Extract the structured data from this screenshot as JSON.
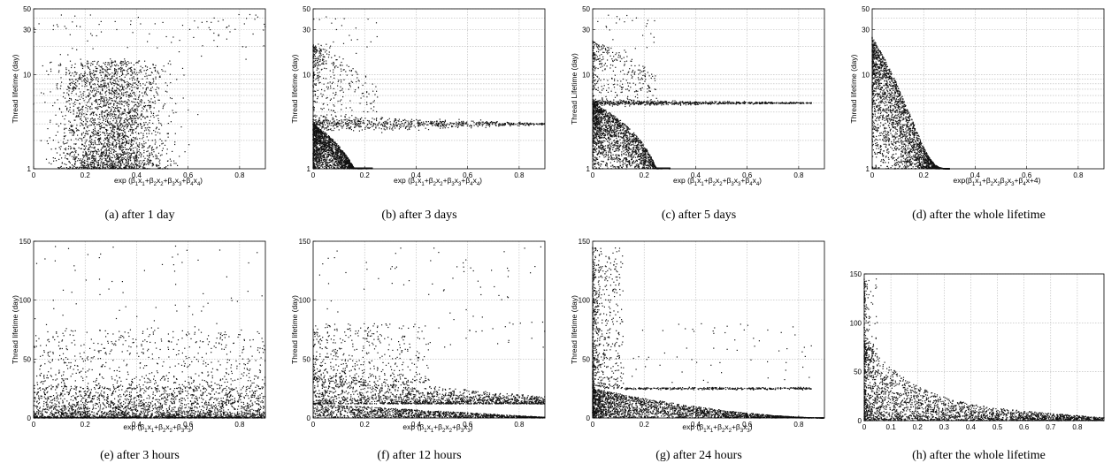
{
  "chart_data": [
    {
      "id": "a",
      "type": "scatter",
      "caption": "(a) after 1 day",
      "ylabel": "Thread lifetime (day)",
      "xlabel": "exp (β1x1+β2x2+β3x3+β4x4)",
      "xlim": [
        0,
        0.9
      ],
      "ylim": [
        1,
        50
      ],
      "yscale": "log",
      "xticks": [
        0,
        0.2,
        0.4,
        0.6,
        0.8
      ],
      "yticks": [
        1,
        10,
        30,
        50
      ],
      "grid": true,
      "points": {
        "pattern": "diffuse",
        "x_center": 0.3,
        "band_y": [
          1,
          20
        ],
        "outliers_max_y": 45
      }
    },
    {
      "id": "b",
      "type": "scatter",
      "caption": "(b) after 3 days",
      "ylabel": "Thread lifetime (day)",
      "xlabel": "exp (β1x1+β2x2+β3x3+β4x4)",
      "xlim": [
        0,
        0.9
      ],
      "ylim": [
        1,
        50
      ],
      "yscale": "log",
      "xticks": [
        0,
        0.2,
        0.4,
        0.6,
        0.8
      ],
      "yticks": [
        1,
        10,
        30,
        50
      ],
      "grid": true,
      "points": {
        "pattern": "cone_band",
        "cone_x_max": 0.18,
        "band_y": 3,
        "band_x_max": 0.9
      }
    },
    {
      "id": "c",
      "type": "scatter",
      "caption": "(c) after 5 days",
      "ylabel": "Thread Lifetime (day)",
      "xlabel": "exp (β1x1+β2x2+β3x3+β4x4)",
      "xlim": [
        0,
        0.9
      ],
      "ylim": [
        1,
        50
      ],
      "yscale": "log",
      "xticks": [
        0,
        0.2,
        0.4,
        0.6,
        0.8
      ],
      "yticks": [
        1,
        10,
        30,
        50
      ],
      "grid": true,
      "points": {
        "pattern": "cone_band",
        "cone_x_max": 0.25,
        "band_y": 5,
        "band_x_max": 0.85
      }
    },
    {
      "id": "d",
      "type": "scatter",
      "caption": "(d) after the whole lifetime",
      "ylabel": "Thread lifetime (day)",
      "xlabel": "exp(β1x1+β2x2β3x3+β4x+4)",
      "xlim": [
        0,
        0.9
      ],
      "ylim": [
        1,
        50
      ],
      "yscale": "log",
      "xticks": [
        0,
        0.2,
        0.4,
        0.6,
        0.8
      ],
      "yticks": [
        1,
        10,
        30,
        50
      ],
      "grid": true,
      "points": {
        "pattern": "decay",
        "x_max": 0.3,
        "y_max": 25
      }
    },
    {
      "id": "e",
      "type": "scatter",
      "caption": "(e) after 3 hours",
      "ylabel": "Thread lifetime (day)",
      "xlabel": "exp (β1x1+β2x2+β3x3)",
      "xlim": [
        0,
        0.9
      ],
      "ylim": [
        0,
        150
      ],
      "yscale": "linear",
      "xticks": [
        0,
        0.2,
        0.4,
        0.6,
        0.8
      ],
      "yticks": [
        0,
        50,
        100,
        150
      ],
      "grid": true,
      "points": {
        "pattern": "lin_diffuse",
        "dense_y_max": 25,
        "outliers_max_y": 146
      }
    },
    {
      "id": "f",
      "type": "scatter",
      "caption": "(f) after 12 hours",
      "ylabel": "Thread lifetime (day)",
      "xlabel": "exp (β1x1+β2x2+β3x3)",
      "xlim": [
        0,
        0.9
      ],
      "ylim": [
        0,
        150
      ],
      "yscale": "linear",
      "xticks": [
        0,
        0.2,
        0.4,
        0.6,
        0.8
      ],
      "yticks": [
        0,
        50,
        100,
        150
      ],
      "grid": true,
      "points": {
        "pattern": "lin_band",
        "band_y": 12,
        "cone_x_max": 0.9,
        "outliers_max_y": 146
      }
    },
    {
      "id": "g",
      "type": "scatter",
      "caption": "(g) after 24 hours",
      "ylabel": "Thread lifetime (day)",
      "xlabel": "exp (β1x1+β2x2+β3x3)",
      "xlim": [
        0,
        0.9
      ],
      "ylim": [
        0,
        150
      ],
      "yscale": "linear",
      "xticks": [
        0,
        0.2,
        0.4,
        0.6,
        0.8
      ],
      "yticks": [
        0,
        50,
        100,
        150
      ],
      "grid": true,
      "points": {
        "pattern": "lin_cone_band",
        "band_y": 25,
        "band_x_max": 0.85,
        "outliers_max_y": 146
      }
    },
    {
      "id": "h",
      "type": "scatter",
      "caption": "(h) after the whole lifetime",
      "ylabel": "",
      "xlabel": "",
      "xlim": [
        0,
        0.9
      ],
      "ylim": [
        0,
        150
      ],
      "yscale": "linear",
      "xticks": [
        0,
        0.1,
        0.2,
        0.3,
        0.4,
        0.5,
        0.6,
        0.7,
        0.8
      ],
      "yticks": [
        0,
        50,
        100,
        150
      ],
      "grid": true,
      "points": {
        "pattern": "lin_decay",
        "y_max": 145
      }
    }
  ]
}
